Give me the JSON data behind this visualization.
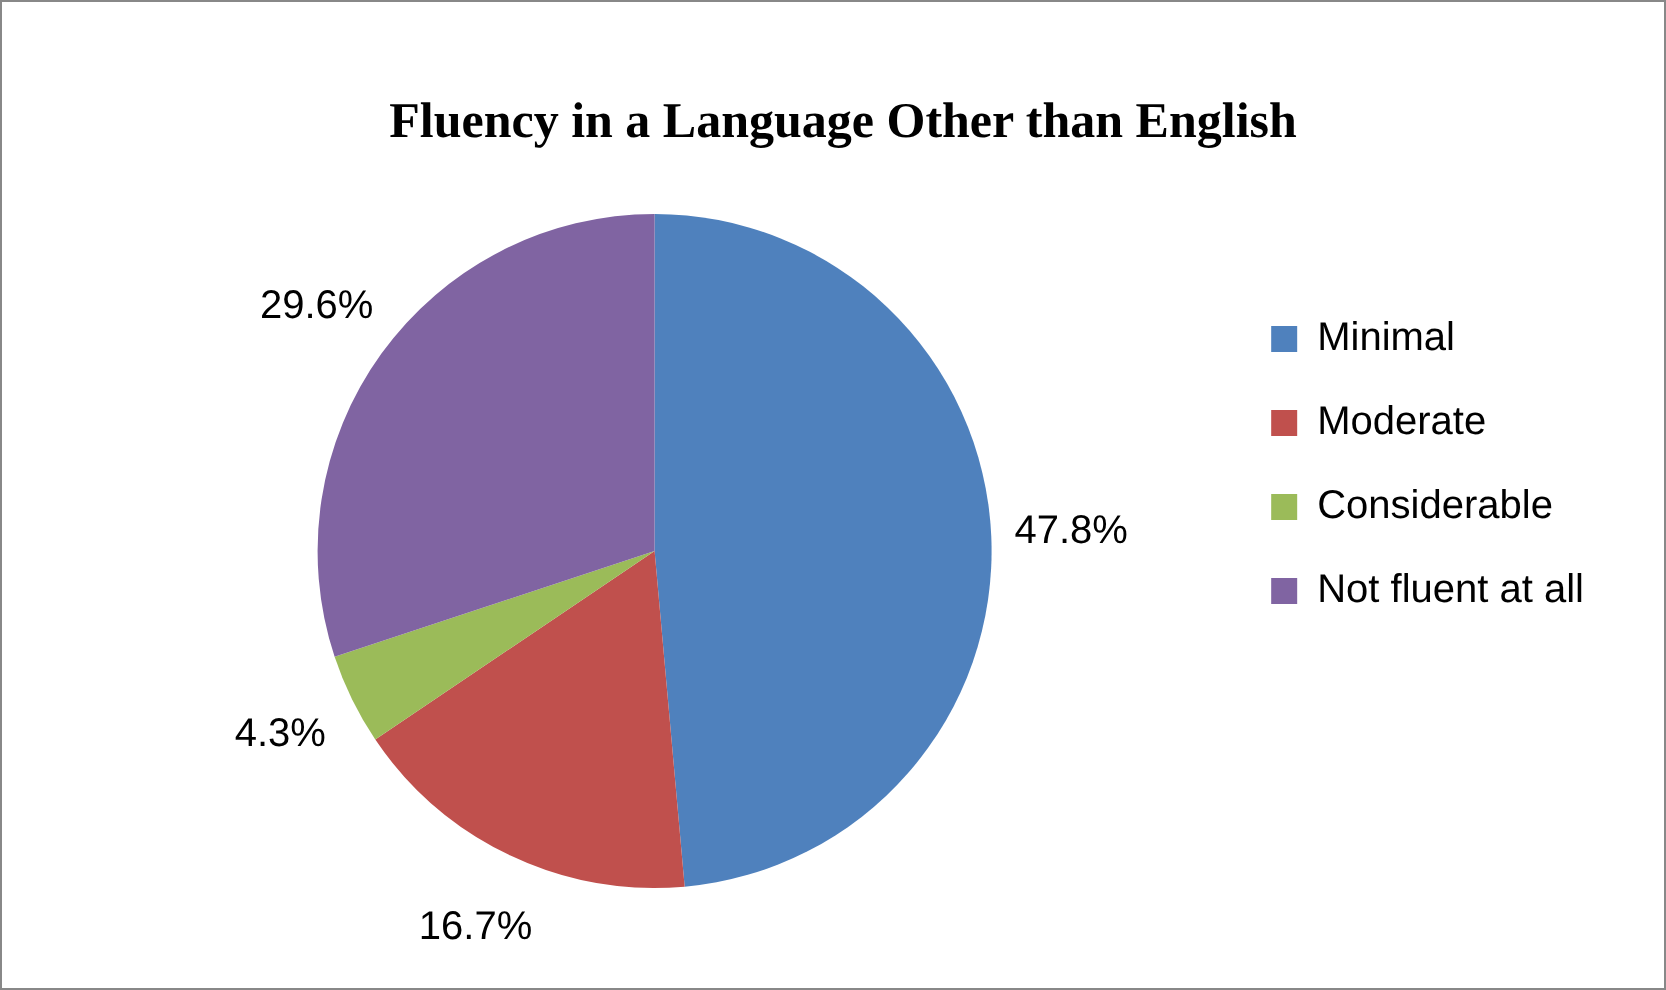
{
  "chart_data": {
    "type": "pie",
    "title": "Fluency in a Language Other than English",
    "categories": [
      "Minimal",
      "Moderate",
      "Considerable",
      "Not fluent at all"
    ],
    "values": [
      47.8,
      16.7,
      4.3,
      29.6
    ],
    "colors": [
      "#4f81bd",
      "#c0504d",
      "#9bbb59",
      "#8064a2"
    ],
    "value_labels": [
      "47.8%",
      "16.7%",
      "4.3%",
      "29.6%"
    ],
    "legend": "right"
  }
}
